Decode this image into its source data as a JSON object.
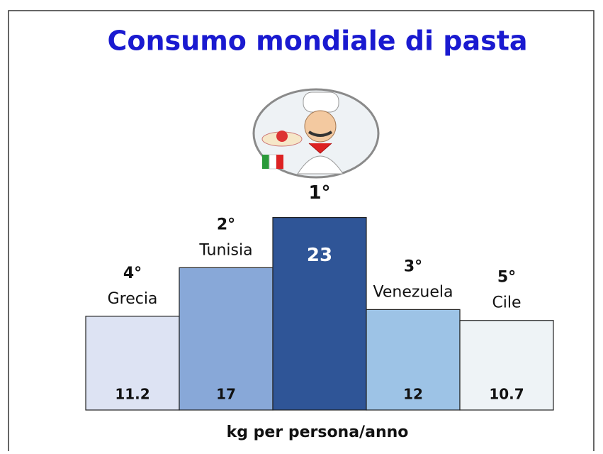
{
  "chart_data": {
    "type": "bar",
    "title": "Consumo mondiale di pasta",
    "x_label": "kg per persona/anno",
    "categories": [
      "Grecia",
      "Tunisia",
      null,
      "Venezuela",
      "Cile"
    ],
    "ranks": [
      "4°",
      "2°",
      "1°",
      "3°",
      "5°"
    ],
    "values": [
      11.2,
      17,
      23,
      12,
      10.7
    ],
    "colors": [
      "#dde3f3",
      "#88a8d8",
      "#2f5597",
      "#9dc3e6",
      "#eef3f6"
    ]
  }
}
